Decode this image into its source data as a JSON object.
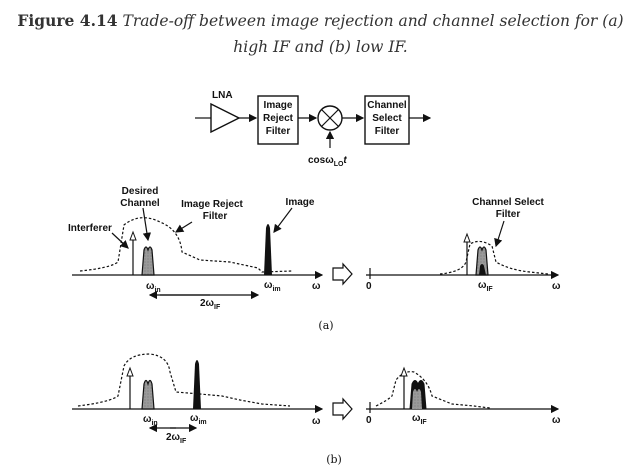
{
  "caption": {
    "label": "Figure 4.14",
    "text": "Trade-off between image rejection and channel selection for (a) high IF and (b) low IF."
  },
  "block_diagram": {
    "lna": "LNA",
    "image_reject": [
      "Image",
      "Reject",
      "Filter"
    ],
    "channel_select": [
      "Channel",
      "Select",
      "Filter"
    ],
    "lo": "cosω",
    "lo_sub": "LO",
    "lo_t": "t"
  },
  "part_a": {
    "desired_channel": [
      "Desired",
      "Channel"
    ],
    "image_reject_filter": [
      "Image Reject",
      "Filter"
    ],
    "image": "Image",
    "interferer": "Interferer",
    "omega_in": "ω",
    "omega_in_sub": "in",
    "omega_im": "ω",
    "omega_im_sub": "im",
    "two_omega_if": "2ω",
    "two_omega_if_sub": "IF",
    "omega": "ω",
    "zero": "0",
    "channel_select_filter": [
      "Channel Select",
      "Filter"
    ],
    "omega_if": "ω",
    "omega_if_sub": "IF",
    "omega_right": "ω",
    "tag": "(a)"
  },
  "part_b": {
    "omega_in": "ω",
    "omega_in_sub": "in",
    "omega_im": "ω",
    "omega_im_sub": "im",
    "two_omega_if": "2ω",
    "two_omega_if_sub": "IF",
    "omega": "ω",
    "zero": "0",
    "omega_if": "ω",
    "omega_if_sub": "IF",
    "omega_right": "ω",
    "tag": "(b)"
  }
}
